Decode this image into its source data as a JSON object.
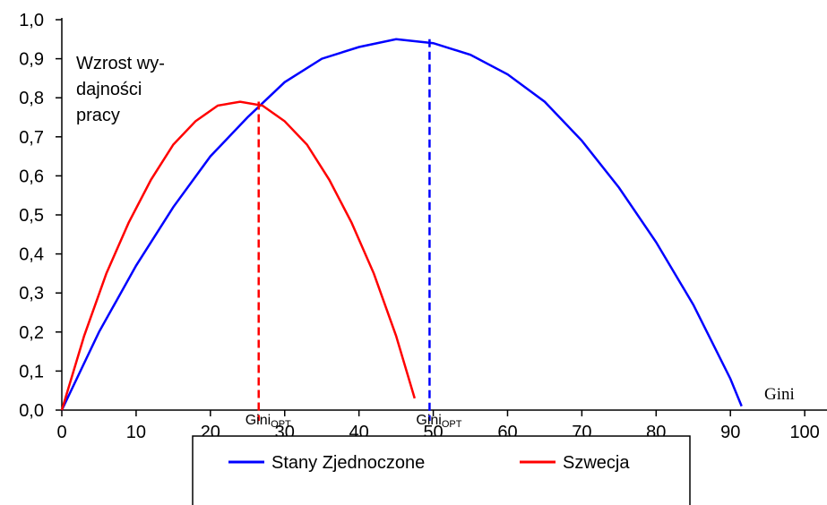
{
  "chart_data": {
    "type": "line",
    "annotation_lines": [
      "Wzrost wy-",
      "dajności",
      "pracy"
    ],
    "x_label": "Gini",
    "xlim": [
      0,
      103
    ],
    "ylim": [
      0,
      1
    ],
    "xticks": [
      0,
      10,
      20,
      30,
      40,
      50,
      60,
      70,
      80,
      90,
      100
    ],
    "yticks": [
      {
        "value": 0,
        "label": "0,0"
      },
      {
        "value": 0.1,
        "label": "0,1"
      },
      {
        "value": 0.2,
        "label": "0,2"
      },
      {
        "value": 0.3,
        "label": "0,3"
      },
      {
        "value": 0.4,
        "label": "0,4"
      },
      {
        "value": 0.5,
        "label": "0,5"
      },
      {
        "value": 0.6,
        "label": "0,6"
      },
      {
        "value": 0.7,
        "label": "0,7"
      },
      {
        "value": 0.8,
        "label": "0,8"
      },
      {
        "value": 0.9,
        "label": "0,9"
      },
      {
        "value": 1,
        "label": "1,0"
      }
    ],
    "series": [
      {
        "name": "Stany Zjednoczone",
        "color": "#0000ff",
        "x": [
          0,
          5,
          10,
          15,
          20,
          25,
          30,
          35,
          40,
          45,
          50,
          55,
          60,
          65,
          70,
          75,
          80,
          85,
          90,
          91.5
        ],
        "values": [
          0,
          0.2,
          0.37,
          0.52,
          0.65,
          0.75,
          0.84,
          0.9,
          0.93,
          0.95,
          0.94,
          0.91,
          0.86,
          0.79,
          0.69,
          0.57,
          0.43,
          0.27,
          0.08,
          0.01
        ]
      },
      {
        "name": "Szwecja",
        "color": "#ff0000",
        "x": [
          0,
          3,
          6,
          9,
          12,
          15,
          18,
          21,
          24,
          27,
          30,
          33,
          36,
          39,
          42,
          45,
          47.5
        ],
        "values": [
          0,
          0.19,
          0.35,
          0.48,
          0.59,
          0.68,
          0.74,
          0.78,
          0.79,
          0.78,
          0.74,
          0.68,
          0.59,
          0.48,
          0.35,
          0.19,
          0.03
        ]
      }
    ],
    "markers": [
      {
        "x": 26.5,
        "y": 0.79,
        "color": "#ff0000",
        "label": "Gini",
        "sub": "OPT"
      },
      {
        "x": 49.5,
        "y": 0.95,
        "color": "#0000ff",
        "label": "Gini",
        "sub": "OPT"
      }
    ]
  }
}
